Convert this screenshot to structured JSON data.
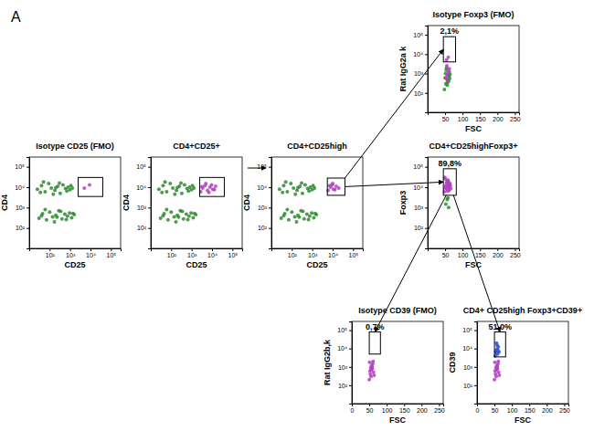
{
  "panel_label": "A",
  "chart_data": [
    {
      "type": "scatter",
      "title": "Isotype CD25 (FMO)",
      "x_label": "CD25",
      "y_label": "CD4",
      "log": true,
      "xlim": [
        10,
        300000
      ],
      "ylim": [
        10,
        300000
      ],
      "xticks": [
        {
          "value": 100,
          "label": "10²"
        },
        {
          "value": 1000,
          "label": "10³"
        },
        {
          "value": 10000,
          "label": "10⁴"
        },
        {
          "value": 100000,
          "label": "10⁵"
        }
      ],
      "yticks": [
        {
          "value": 100,
          "label": "10²"
        },
        {
          "value": 1000,
          "label": "10³"
        },
        {
          "value": 10000,
          "label": "10⁴"
        },
        {
          "value": 100000,
          "label": "10⁵"
        }
      ],
      "series": [
        {
          "color": "#2e8b2e",
          "x": [
            25,
            40,
            60,
            90,
            120,
            180,
            250,
            330,
            450,
            600,
            800,
            1000,
            1300,
            50,
            150,
            300,
            700,
            1100,
            35,
            200
          ],
          "y": [
            8000,
            12000,
            6000,
            15000,
            9000,
            7000,
            11000,
            5000,
            13000,
            8500,
            10000,
            7500,
            9000,
            18000,
            4500,
            16000,
            6500,
            12000,
            5500,
            9500
          ]
        },
        {
          "color": "#2e8b2e",
          "x": [
            30,
            45,
            70,
            100,
            140,
            200,
            280,
            400,
            550,
            750,
            950,
            1200,
            1600,
            60,
            170,
            350,
            650,
            1400,
            40,
            230
          ],
          "y": [
            300,
            500,
            250,
            600,
            350,
            420,
            700,
            280,
            480,
            380,
            550,
            320,
            450,
            800,
            200,
            650,
            260,
            520,
            400,
            340
          ]
        },
        {
          "color": "#b040c0",
          "x": [
            5000,
            9000
          ],
          "y": [
            9000,
            13000
          ]
        }
      ],
      "annotations": [
        {
          "x0": 2500,
          "x1": 40000,
          "y0": 3500,
          "y1": 30000
        }
      ]
    },
    {
      "type": "scatter",
      "title": "CD4+CD25+",
      "x_label": "CD25",
      "y_label": "CD4",
      "log": true,
      "xlim": [
        10,
        300000
      ],
      "ylim": [
        10,
        300000
      ],
      "xticks": [
        {
          "value": 100,
          "label": "10²"
        },
        {
          "value": 1000,
          "label": "10³"
        },
        {
          "value": 10000,
          "label": "10⁴"
        },
        {
          "value": 100000,
          "label": "10⁵"
        }
      ],
      "yticks": [
        {
          "value": 100,
          "label": "10²"
        },
        {
          "value": 1000,
          "label": "10³"
        },
        {
          "value": 10000,
          "label": "10⁴"
        },
        {
          "value": 100000,
          "label": "10⁵"
        }
      ],
      "series": [
        {
          "color": "#2e8b2e",
          "x": [
            25,
            40,
            60,
            90,
            120,
            180,
            250,
            330,
            450,
            600,
            800,
            1000,
            1300,
            50,
            150,
            300,
            700,
            1100,
            35,
            200
          ],
          "y": [
            8000,
            12000,
            6000,
            15000,
            9000,
            7000,
            11000,
            5000,
            13000,
            8500,
            10000,
            7500,
            9000,
            18000,
            4500,
            16000,
            6500,
            12000,
            5500,
            9500
          ]
        },
        {
          "color": "#2e8b2e",
          "x": [
            30,
            45,
            70,
            100,
            140,
            200,
            280,
            400,
            550,
            750,
            950,
            1200,
            1600,
            60,
            170,
            350,
            650,
            1400,
            40,
            230
          ],
          "y": [
            300,
            500,
            250,
            600,
            350,
            420,
            700,
            280,
            480,
            380,
            550,
            320,
            450,
            800,
            200,
            650,
            260,
            520,
            400,
            340
          ]
        },
        {
          "color": "#b040c0",
          "x": [
            2800,
            3500,
            4500,
            6000,
            8000,
            11000,
            15000,
            5000,
            7000,
            9500,
            13000,
            3200
          ],
          "y": [
            6000,
            9000,
            12000,
            7000,
            10000,
            8000,
            11000,
            15000,
            5500,
            13000,
            7500,
            10500
          ]
        }
      ],
      "annotations": [
        {
          "x0": 2500,
          "x1": 40000,
          "y0": 3500,
          "y1": 30000
        }
      ]
    },
    {
      "type": "scatter",
      "title": "CD4+CD25high",
      "x_label": "CD25",
      "y_label": "CD4",
      "log": true,
      "xlim": [
        10,
        300000
      ],
      "ylim": [
        10,
        300000
      ],
      "xticks": [
        {
          "value": 100,
          "label": "10²"
        },
        {
          "value": 1000,
          "label": "10³"
        },
        {
          "value": 10000,
          "label": "10⁴"
        },
        {
          "value": 100000,
          "label": "10⁵"
        }
      ],
      "yticks": [
        {
          "value": 100,
          "label": "10²"
        },
        {
          "value": 1000,
          "label": "10³"
        },
        {
          "value": 10000,
          "label": "10⁴"
        },
        {
          "value": 100000,
          "label": "10⁵"
        }
      ],
      "series": [
        {
          "color": "#2e8b2e",
          "x": [
            25,
            40,
            60,
            90,
            120,
            180,
            250,
            330,
            450,
            600,
            800,
            1000,
            1300,
            50,
            150,
            300,
            700,
            1100,
            35,
            200
          ],
          "y": [
            8000,
            12000,
            6000,
            15000,
            9000,
            7000,
            11000,
            5000,
            13000,
            8500,
            10000,
            7500,
            9000,
            18000,
            4500,
            16000,
            6500,
            12000,
            5500,
            9500
          ]
        },
        {
          "color": "#2e8b2e",
          "x": [
            30,
            45,
            70,
            100,
            140,
            200,
            280,
            400,
            550,
            750,
            950,
            1200,
            1600,
            60,
            170,
            350,
            650,
            1400,
            40,
            230
          ],
          "y": [
            300,
            500,
            250,
            600,
            350,
            420,
            700,
            280,
            480,
            380,
            550,
            320,
            450,
            800,
            200,
            650,
            260,
            520,
            400,
            340
          ]
        },
        {
          "color": "#b040c0",
          "x": [
            6000,
            8000,
            11000,
            15000,
            9500,
            13000,
            7000,
            20000,
            10000
          ],
          "y": [
            7000,
            10000,
            8000,
            11000,
            13000,
            7500,
            12000,
            9000,
            15000
          ]
        }
      ],
      "annotations": [
        {
          "x0": 5500,
          "x1": 40000,
          "y0": 4000,
          "y1": 28000
        }
      ]
    },
    {
      "type": "scatter",
      "title": "Isotype Foxp3 (FMO)",
      "x_label": "FSC",
      "y_label": "Rat IgG2a k",
      "log": "y",
      "xlim": [
        0,
        262
      ],
      "ylim": [
        10,
        300000
      ],
      "xticks": [
        50,
        100,
        150,
        200,
        250
      ],
      "yticks": [
        {
          "value": 100,
          "label": "10²"
        },
        {
          "value": 1000,
          "label": "10³"
        },
        {
          "value": 10000,
          "label": "10⁴"
        },
        {
          "value": 100000,
          "label": "10⁵"
        }
      ],
      "series": [
        {
          "color": "#2e8b2e",
          "x": [
            48,
            52,
            55,
            58,
            60,
            62,
            50,
            56,
            64,
            53,
            57,
            61,
            54,
            59,
            51,
            63
          ],
          "y": [
            150,
            300,
            500,
            800,
            400,
            1200,
            600,
            250,
            900,
            1500,
            350,
            700,
            2000,
            450,
            1000,
            550
          ]
        },
        {
          "color": "#b040c0",
          "x": [
            52,
            56,
            60,
            55,
            58,
            62,
            54,
            59
          ],
          "y": [
            600,
            900,
            1300,
            2500,
            400,
            1800,
            5000,
            7000
          ]
        }
      ],
      "annotations": [
        {
          "text": "2,1%",
          "x0": 45,
          "x1": 80,
          "y0": 4000,
          "y1": 80000
        }
      ]
    },
    {
      "type": "scatter",
      "title": "CD4+CD25highFoxp3+",
      "x_label": "FSC",
      "y_label": "Foxp3",
      "log": "y",
      "xlim": [
        0,
        262
      ],
      "ylim": [
        10,
        300000
      ],
      "xticks": [
        50,
        100,
        150,
        200,
        250
      ],
      "yticks": [
        {
          "value": 100,
          "label": "10²"
        },
        {
          "value": 1000,
          "label": "10³"
        },
        {
          "value": 10000,
          "label": "10⁴"
        },
        {
          "value": 100000,
          "label": "10⁵"
        }
      ],
      "series": [
        {
          "color": "#2e8b2e",
          "x": [
            52,
            56,
            60,
            58
          ],
          "y": [
            1500,
            2500,
            1000,
            3000
          ]
        },
        {
          "color": "#b040c0",
          "x": [
            48,
            50,
            52,
            54,
            56,
            58,
            60,
            62,
            64,
            51,
            53,
            55,
            57,
            59,
            61,
            63,
            66,
            49,
            65,
            58
          ],
          "y": [
            6000,
            9000,
            12000,
            15000,
            8000,
            20000,
            11000,
            7000,
            14000,
            25000,
            10000,
            18000,
            6500,
            13000,
            9500,
            16000,
            8500,
            30000,
            12000,
            22000
          ]
        }
      ],
      "annotations": [
        {
          "text": "89,8%",
          "x0": 45,
          "x1": 82,
          "y0": 4000,
          "y1": 80000
        }
      ]
    },
    {
      "type": "scatter",
      "title": "Isotype CD39 (FMO)",
      "x_label": "FSC",
      "y_label": "Rat IgG2b,k",
      "log": "y",
      "xlim": [
        0,
        262
      ],
      "ylim": [
        10,
        300000
      ],
      "xticks": [
        0,
        50,
        100,
        150,
        200,
        250
      ],
      "yticks": [
        {
          "value": 100,
          "label": "10²"
        },
        {
          "value": 1000,
          "label": "10³"
        },
        {
          "value": 10000,
          "label": "10⁴"
        },
        {
          "value": 100000,
          "label": "10⁵"
        }
      ],
      "series": [
        {
          "color": "#b040c0",
          "x": [
            50,
            53,
            56,
            58,
            60,
            62,
            55,
            57,
            59,
            52,
            61,
            54,
            64,
            51
          ],
          "y": [
            200,
            400,
            700,
            1000,
            1500,
            500,
            300,
            1200,
            800,
            600,
            2000,
            900,
            350,
            1800
          ]
        }
      ],
      "annotations": [
        {
          "text": "0,7%",
          "x0": 50,
          "x1": 82,
          "y0": 5000,
          "y1": 80000
        }
      ]
    },
    {
      "type": "scatter",
      "title": "CD4+ CD25high Foxp3+CD39+",
      "x_label": "FSC",
      "y_label": "CD39",
      "log": "y",
      "xlim": [
        0,
        262
      ],
      "ylim": [
        10,
        300000
      ],
      "xticks": [
        0,
        50,
        100,
        150,
        200,
        250
      ],
      "yticks": [
        {
          "value": 100,
          "label": "10²"
        },
        {
          "value": 1000,
          "label": "10³"
        },
        {
          "value": 10000,
          "label": "10⁴"
        },
        {
          "value": 100000,
          "label": "10⁵"
        }
      ],
      "series": [
        {
          "color": "#b040c0",
          "x": [
            50,
            53,
            56,
            58,
            60,
            62,
            55,
            57,
            59,
            52,
            61,
            54,
            64,
            51
          ],
          "y": [
            200,
            400,
            700,
            1000,
            1500,
            500,
            300,
            1200,
            800,
            600,
            2000,
            900,
            350,
            1800
          ]
        },
        {
          "color": "#3050d0",
          "x": [
            52,
            55,
            57,
            59,
            61,
            54,
            58,
            60,
            63,
            56
          ],
          "y": [
            4000,
            6000,
            9000,
            5000,
            12000,
            7000,
            15000,
            8000,
            6500,
            20000
          ]
        }
      ],
      "annotations": [
        {
          "text": "51,0%",
          "x0": 50,
          "x1": 82,
          "y0": 3500,
          "y1": 80000
        }
      ]
    }
  ]
}
